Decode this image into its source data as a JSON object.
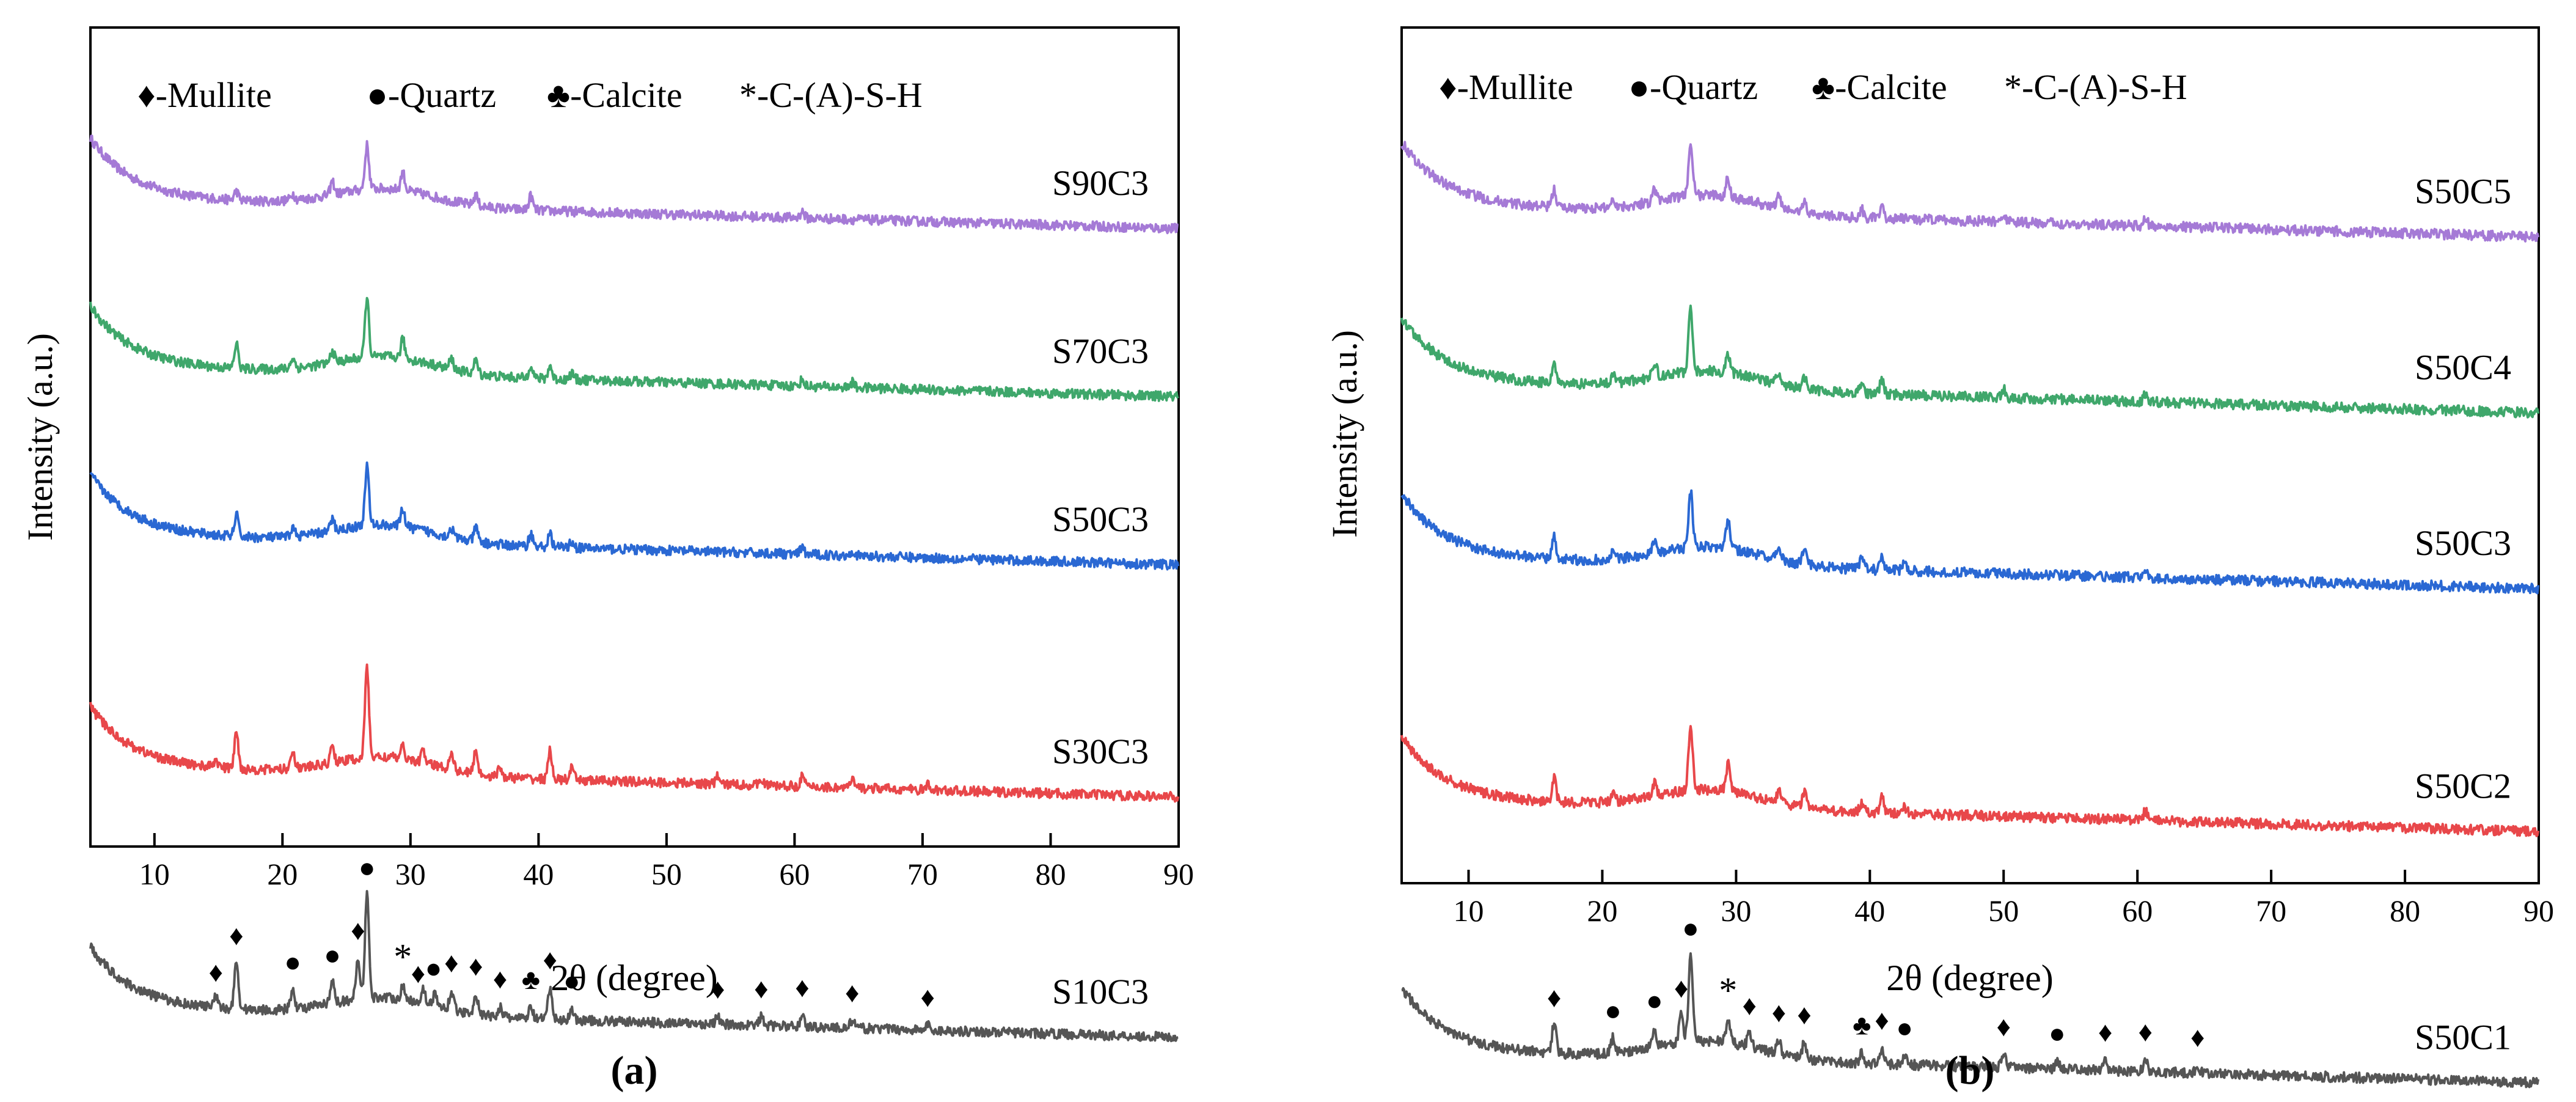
{
  "chart_data": [
    {
      "type": "line",
      "panel_label": "(a)",
      "xlabel": "2θ (degree)",
      "ylabel": "Intensity (a.u.)",
      "xlim": [
        5,
        90
      ],
      "xticks": [
        "10",
        "20",
        "30",
        "40",
        "50",
        "60",
        "70",
        "80",
        "90"
      ],
      "legend": [
        "♦-Mullite",
        "●-Quartz",
        "♣-Calcite",
        "*-C-(A)-S-H"
      ],
      "series": [
        {
          "name": "S90C3",
          "color": "#a57ad6",
          "base": 0.81,
          "peaks": [
            [
              16.4,
              0.35
            ],
            [
              20.8,
              0.25
            ],
            [
              23.9,
              0.5
            ],
            [
              26.6,
              1.7
            ],
            [
              29.4,
              0.7
            ],
            [
              35.1,
              0.4
            ],
            [
              39.4,
              0.55
            ],
            [
              60.6,
              0.25
            ]
          ]
        },
        {
          "name": "S70C3",
          "color": "#3fa76b",
          "base": 0.6,
          "peaks": [
            [
              16.4,
              0.95
            ],
            [
              20.8,
              0.4
            ],
            [
              23.9,
              0.45
            ],
            [
              26.6,
              2.3
            ],
            [
              29.4,
              0.75
            ],
            [
              33.2,
              0.4
            ],
            [
              35.1,
              0.5
            ],
            [
              39.4,
              0.55
            ],
            [
              40.9,
              0.5
            ],
            [
              42.6,
              0.25
            ],
            [
              60.6,
              0.25
            ],
            [
              64.5,
              0.2
            ]
          ]
        },
        {
          "name": "S50C3",
          "color": "#2a68d3",
          "base": 0.39,
          "peaks": [
            [
              16.4,
              0.85
            ],
            [
              20.8,
              0.35
            ],
            [
              23.9,
              0.45
            ],
            [
              26.6,
              2.3
            ],
            [
              29.4,
              0.7
            ],
            [
              33.2,
              0.35
            ],
            [
              35.1,
              0.55
            ],
            [
              39.4,
              0.5
            ],
            [
              40.9,
              0.5
            ],
            [
              42.6,
              0.25
            ],
            [
              60.6,
              0.25
            ],
            [
              64.5,
              0.2
            ]
          ]
        },
        {
          "name": "S30C3",
          "color": "#e8474a",
          "base": 0.1,
          "peaks": [
            [
              14.8,
              0.3
            ],
            [
              16.4,
              1.4
            ],
            [
              20.8,
              0.75
            ],
            [
              23.9,
              0.65
            ],
            [
              26.6,
              3.5
            ],
            [
              29.4,
              0.45
            ],
            [
              31.0,
              0.45
            ],
            [
              33.2,
              0.7
            ],
            [
              35.1,
              0.9
            ],
            [
              37.0,
              0.35
            ],
            [
              40.9,
              1.1
            ],
            [
              42.6,
              0.45
            ],
            [
              54.0,
              0.3
            ],
            [
              57.4,
              0.3
            ],
            [
              60.6,
              0.4
            ],
            [
              64.5,
              0.3
            ],
            [
              70.4,
              0.2
            ]
          ]
        },
        {
          "name": "S10C3",
          "color": "#555555",
          "base": -0.2,
          "peaks": [
            [
              14.8,
              0.4
            ],
            [
              16.4,
              1.85
            ],
            [
              20.8,
              0.75
            ],
            [
              23.9,
              0.8
            ],
            [
              25.9,
              1.6
            ],
            [
              26.6,
              4.0
            ],
            [
              29.4,
              0.45
            ],
            [
              31.0,
              0.55
            ],
            [
              31.9,
              0.45
            ],
            [
              33.2,
              0.75
            ],
            [
              35.1,
              0.8
            ],
            [
              37.0,
              0.4
            ],
            [
              39.4,
              0.45
            ],
            [
              40.9,
              1.25
            ],
            [
              42.6,
              0.45
            ],
            [
              54.0,
              0.3
            ],
            [
              57.4,
              0.35
            ],
            [
              60.6,
              0.45
            ],
            [
              64.5,
              0.3
            ],
            [
              70.4,
              0.2
            ]
          ]
        }
      ],
      "markers": [
        {
          "x": 14.8,
          "symbol": "♦"
        },
        {
          "x": 16.4,
          "symbol": "♦"
        },
        {
          "x": 20.8,
          "symbol": "●"
        },
        {
          "x": 23.9,
          "symbol": "●"
        },
        {
          "x": 25.9,
          "symbol": "♦"
        },
        {
          "x": 26.6,
          "symbol": "●"
        },
        {
          "x": 29.4,
          "symbol": "*"
        },
        {
          "x": 30.6,
          "symbol": "♦"
        },
        {
          "x": 31.8,
          "symbol": "●"
        },
        {
          "x": 33.2,
          "symbol": "♦"
        },
        {
          "x": 35.1,
          "symbol": "♦"
        },
        {
          "x": 37.0,
          "symbol": "♦"
        },
        {
          "x": 39.4,
          "symbol": "♣"
        },
        {
          "x": 40.9,
          "symbol": "♦"
        },
        {
          "x": 42.6,
          "symbol": "●"
        },
        {
          "x": 54.0,
          "symbol": "♦"
        },
        {
          "x": 57.4,
          "symbol": "♦"
        },
        {
          "x": 60.6,
          "symbol": "♦"
        },
        {
          "x": 64.5,
          "symbol": "♦"
        },
        {
          "x": 70.4,
          "symbol": "♦"
        }
      ]
    },
    {
      "type": "line",
      "panel_label": "(b)",
      "xlabel": "2θ (degree)",
      "ylabel": "Intensity (a.u.)",
      "xlim": [
        5,
        90
      ],
      "xticks": [
        "10",
        "20",
        "30",
        "40",
        "50",
        "60",
        "70",
        "80",
        "90"
      ],
      "legend": [
        "♦-Mullite",
        "●-Quartz",
        "♣-Calcite",
        "*-C-(A)-S-H"
      ],
      "series": [
        {
          "name": "S50C5",
          "color": "#a57ad6",
          "base": 0.81,
          "peaks": [
            [
              16.4,
              0.65
            ],
            [
              20.8,
              0.3
            ],
            [
              23.9,
              0.45
            ],
            [
              26.6,
              2.0
            ],
            [
              29.4,
              0.7
            ],
            [
              33.2,
              0.45
            ],
            [
              35.1,
              0.4
            ],
            [
              39.4,
              0.3
            ],
            [
              40.9,
              0.35
            ],
            [
              50.0,
              0.3
            ],
            [
              60.6,
              0.25
            ]
          ]
        },
        {
          "name": "S50C4",
          "color": "#3fa76b",
          "base": 0.6,
          "peaks": [
            [
              16.4,
              0.75
            ],
            [
              20.8,
              0.35
            ],
            [
              23.9,
              0.55
            ],
            [
              26.6,
              2.3
            ],
            [
              29.4,
              0.7
            ],
            [
              33.2,
              0.45
            ],
            [
              35.1,
              0.4
            ],
            [
              39.4,
              0.35
            ],
            [
              40.9,
              0.5
            ],
            [
              50.0,
              0.3
            ],
            [
              60.6,
              0.3
            ]
          ]
        },
        {
          "name": "S50C3",
          "color": "#2a68d3",
          "base": 0.39,
          "peaks": [
            [
              16.4,
              0.8
            ],
            [
              20.8,
              0.35
            ],
            [
              23.9,
              0.55
            ],
            [
              26.6,
              2.1
            ],
            [
              29.4,
              1.1
            ],
            [
              33.2,
              0.5
            ],
            [
              35.1,
              0.6
            ],
            [
              39.4,
              0.4
            ],
            [
              40.9,
              0.55
            ],
            [
              42.6,
              0.3
            ],
            [
              60.6,
              0.35
            ]
          ]
        },
        {
          "name": "S50C2",
          "color": "#e8474a",
          "base": 0.1,
          "peaks": [
            [
              16.4,
              0.85
            ],
            [
              20.8,
              0.3
            ],
            [
              23.9,
              0.5
            ],
            [
              26.6,
              2.3
            ],
            [
              29.4,
              1.0
            ],
            [
              33.2,
              0.45
            ],
            [
              35.1,
              0.55
            ],
            [
              39.4,
              0.35
            ],
            [
              40.9,
              0.55
            ],
            [
              42.6,
              0.25
            ],
            [
              60.6,
              0.35
            ]
          ]
        },
        {
          "name": "S50C1",
          "color": "#555555",
          "base": -0.2,
          "peaks": [
            [
              16.4,
              1.1
            ],
            [
              20.8,
              0.55
            ],
            [
              23.9,
              0.7
            ],
            [
              25.9,
              1.0
            ],
            [
              26.6,
              3.2
            ],
            [
              29.4,
              0.8
            ],
            [
              31.0,
              0.5
            ],
            [
              33.2,
              0.5
            ],
            [
              35.1,
              0.6
            ],
            [
              39.4,
              0.4
            ],
            [
              40.9,
              0.6
            ],
            [
              42.6,
              0.35
            ],
            [
              50.0,
              0.5
            ],
            [
              54.0,
              0.3
            ],
            [
              57.6,
              0.4
            ],
            [
              60.6,
              0.45
            ],
            [
              64.5,
              0.3
            ]
          ]
        }
      ],
      "markers": [
        {
          "x": 16.4,
          "symbol": "♦"
        },
        {
          "x": 20.8,
          "symbol": "●"
        },
        {
          "x": 23.9,
          "symbol": "●"
        },
        {
          "x": 25.9,
          "symbol": "♦"
        },
        {
          "x": 26.6,
          "symbol": "●"
        },
        {
          "x": 29.4,
          "symbol": "*"
        },
        {
          "x": 31.0,
          "symbol": "♦"
        },
        {
          "x": 33.2,
          "symbol": "♦"
        },
        {
          "x": 35.1,
          "symbol": "♦"
        },
        {
          "x": 39.4,
          "symbol": "♣"
        },
        {
          "x": 40.9,
          "symbol": "♦"
        },
        {
          "x": 42.6,
          "symbol": "●"
        },
        {
          "x": 50.0,
          "symbol": "♦"
        },
        {
          "x": 54.0,
          "symbol": "●"
        },
        {
          "x": 57.6,
          "symbol": "♦"
        },
        {
          "x": 60.6,
          "symbol": "♦"
        },
        {
          "x": 64.5,
          "symbol": "♦"
        }
      ]
    }
  ]
}
